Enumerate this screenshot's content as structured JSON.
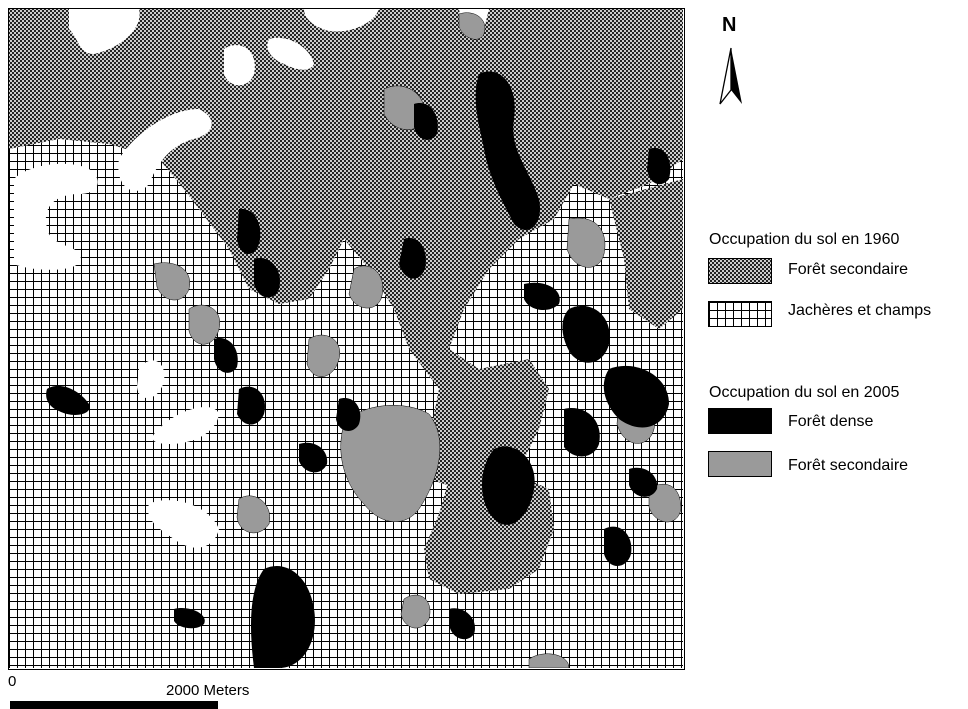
{
  "north": {
    "letter": "N",
    "icon": "north-arrow-icon"
  },
  "legend": {
    "section_1960": {
      "title": "Occupation du sol en 1960",
      "items": [
        {
          "label": "Forêt secondaire",
          "pattern": "crosshatch-dense",
          "icon": "crosshatch-dense-swatch"
        },
        {
          "label": "Jachères et champs",
          "pattern": "grid",
          "icon": "grid-swatch"
        }
      ]
    },
    "section_2005": {
      "title": "Occupation du sol en 2005",
      "items": [
        {
          "label": "Forêt dense",
          "color": "#000000"
        },
        {
          "label": "Forêt secondaire",
          "color": "#9a9a9a"
        }
      ]
    }
  },
  "scale": {
    "start_label": "0",
    "end_value": "2000",
    "unit": "Meters"
  },
  "colors": {
    "dense_forest": "#000000",
    "secondary_forest_2005": "#9a9a9a",
    "grid_line": "#000000",
    "background": "#ffffff"
  }
}
